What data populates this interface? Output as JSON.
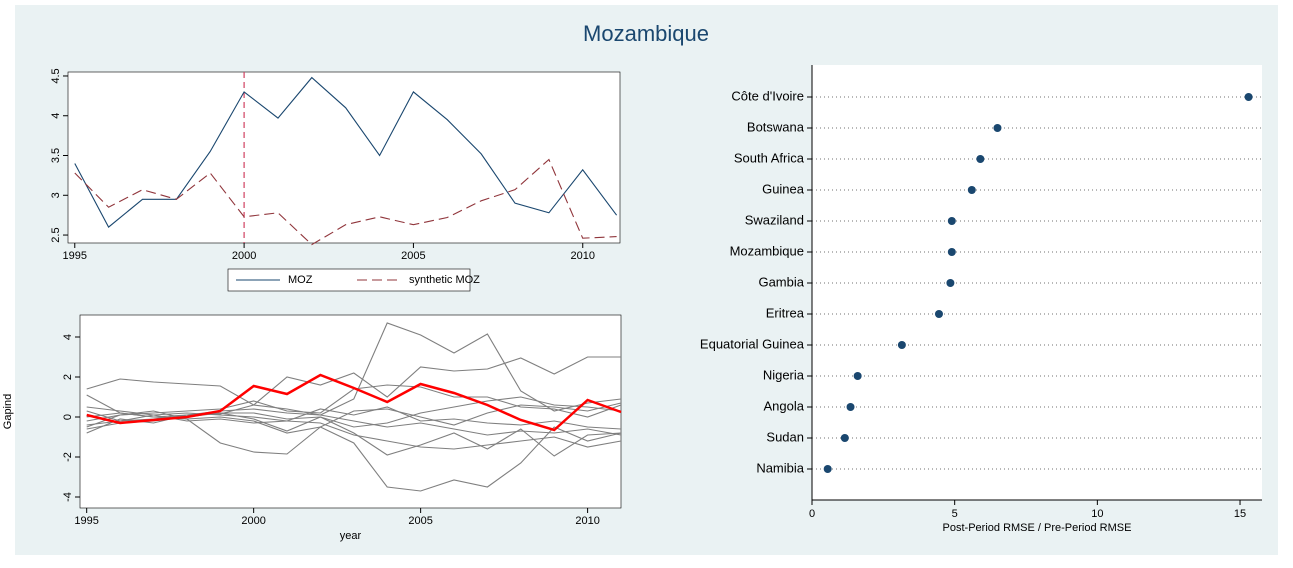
{
  "title": "Mozambique",
  "chart_data": [
    {
      "type": "line",
      "x": [
        1995,
        1996,
        1997,
        1998,
        1999,
        2000,
        2001,
        2002,
        2003,
        2004,
        2005,
        2006,
        2007,
        2008,
        2009,
        2010,
        2011
      ],
      "series": [
        {
          "name": "MOZ",
          "color": "#1a476f",
          "values": [
            3.4,
            2.6,
            2.95,
            2.95,
            3.55,
            4.3,
            3.97,
            4.48,
            4.1,
            3.5,
            4.3,
            3.95,
            3.52,
            2.9,
            2.78,
            3.32,
            2.75
          ]
        },
        {
          "name": "synthetic MOZ",
          "color": "#90353b",
          "dash": true,
          "values": [
            3.28,
            2.85,
            3.07,
            2.95,
            3.28,
            2.73,
            2.78,
            2.38,
            2.63,
            2.73,
            2.63,
            2.72,
            2.93,
            3.07,
            3.45,
            2.46,
            2.48
          ]
        }
      ],
      "xlim": [
        1994.8,
        2011.1
      ],
      "xticks": [
        1995,
        2000,
        2005,
        2010
      ],
      "ylim": [
        2.4,
        4.55
      ],
      "yticks": [
        2.5,
        3,
        3.5,
        4,
        4.5
      ],
      "vline": 2000,
      "vline_color": "#d04060",
      "legend": "bottom"
    },
    {
      "type": "line",
      "x": [
        1995,
        1996,
        1997,
        1998,
        1999,
        2000,
        2001,
        2002,
        2003,
        2004,
        2005,
        2006,
        2007,
        2008,
        2009,
        2010,
        2011
      ],
      "y_label": "Gapind",
      "x_label": "year",
      "series": [
        {
          "color": "#7f7f7f",
          "values": [
            1.4,
            1.9,
            1.75,
            1.65,
            1.55,
            0.6,
            0.4,
            0.1,
            0.9,
            4.7,
            4.1,
            3.2,
            4.15,
            1.3,
            0.3,
            0.7,
            0.9
          ]
        },
        {
          "color": "#7f7f7f",
          "values": [
            1.1,
            0.2,
            0.0,
            0.1,
            0.15,
            0.6,
            2.0,
            1.6,
            2.2,
            1.0,
            2.5,
            2.3,
            2.4,
            2.95,
            2.15,
            3.0,
            3.0
          ]
        },
        {
          "color": "#7f7f7f",
          "values": [
            -0.5,
            0.1,
            0.3,
            -0.1,
            -1.3,
            -1.75,
            -1.85,
            -0.5,
            -1.3,
            -3.5,
            -3.7,
            -3.15,
            -3.5,
            -2.3,
            -0.5,
            -1.2,
            -0.8
          ]
        },
        {
          "color": "#7f7f7f",
          "values": [
            -0.8,
            -0.1,
            -0.3,
            0.1,
            0.2,
            -0.1,
            -0.7,
            0.0,
            -0.8,
            -1.9,
            -1.4,
            -0.8,
            -1.6,
            -0.6,
            -1.95,
            -0.9,
            -0.8
          ]
        },
        {
          "color": "#7f7f7f",
          "values": [
            -0.2,
            0.1,
            0.2,
            0.3,
            0.4,
            0.8,
            0.3,
            0.2,
            1.4,
            1.6,
            1.5,
            1.0,
            1.0,
            0.5,
            0.4,
            0.0,
            0.6
          ]
        },
        {
          "color": "#7f7f7f",
          "values": [
            0.3,
            -0.2,
            0.1,
            0.2,
            0.1,
            0.0,
            -0.2,
            -0.3,
            -0.9,
            -1.2,
            -1.5,
            -1.6,
            -1.4,
            -1.2,
            -1.0,
            -1.5,
            -1.2
          ]
        },
        {
          "color": "#7f7f7f",
          "values": [
            -0.6,
            -0.3,
            -0.2,
            0.0,
            0.2,
            0.2,
            -0.1,
            0.0,
            -0.5,
            -0.3,
            0.2,
            0.5,
            0.8,
            1.0,
            0.6,
            0.5,
            0.3
          ]
        },
        {
          "color": "#7f7f7f",
          "values": [
            0.0,
            0.2,
            0.0,
            -0.1,
            0.0,
            -0.2,
            -0.8,
            -0.5,
            0.3,
            0.4,
            0.0,
            -0.4,
            0.2,
            0.6,
            0.5,
            0.3,
            0.7
          ]
        },
        {
          "color": "#7f7f7f",
          "values": [
            -0.4,
            -0.2,
            -0.1,
            0.1,
            0.3,
            0.4,
            0.2,
            0.1,
            -0.2,
            -0.5,
            -0.3,
            -0.6,
            -0.9,
            -0.7,
            -0.8,
            -0.6,
            -0.9
          ]
        },
        {
          "color": "#7f7f7f",
          "values": [
            0.5,
            0.3,
            0.1,
            -0.2,
            -0.1,
            -0.3,
            -0.2,
            0.4,
            0.1,
            0.5,
            -0.2,
            -0.1,
            -0.3,
            -0.4,
            -0.2,
            -0.5,
            -0.6
          ]
        },
        {
          "color": "#ff0000",
          "width": 2.5,
          "values": [
            0.1,
            -0.3,
            -0.15,
            0.0,
            0.3,
            1.55,
            1.15,
            2.1,
            1.45,
            0.75,
            1.65,
            1.2,
            0.6,
            -0.15,
            -0.65,
            0.85,
            0.25
          ]
        }
      ],
      "xlim": [
        1994.8,
        2011
      ],
      "xticks": [
        1995,
        2000,
        2005,
        2010
      ],
      "ylim": [
        -4.55,
        5.1
      ],
      "yticks": [
        -4,
        -2,
        0,
        2,
        4
      ]
    },
    {
      "type": "dot",
      "categories": [
        "Côte d'Ivoire",
        "Botswana",
        "South Africa",
        "Guinea",
        "Swaziland",
        "Mozambique",
        "Gambia",
        "Eritrea",
        "Equatorial Guinea",
        "Nigeria",
        "Angola",
        "Sudan",
        "Namibia"
      ],
      "values": [
        15.3,
        6.5,
        5.9,
        5.6,
        4.9,
        4.9,
        4.85,
        4.45,
        3.15,
        1.6,
        1.35,
        1.15,
        0.55
      ],
      "color": "#1a476f",
      "x_label": "Post-Period RMSE / Pre-Period RMSE",
      "xlim": [
        0,
        15.77
      ],
      "xticks": [
        0,
        5,
        10,
        15
      ]
    }
  ]
}
